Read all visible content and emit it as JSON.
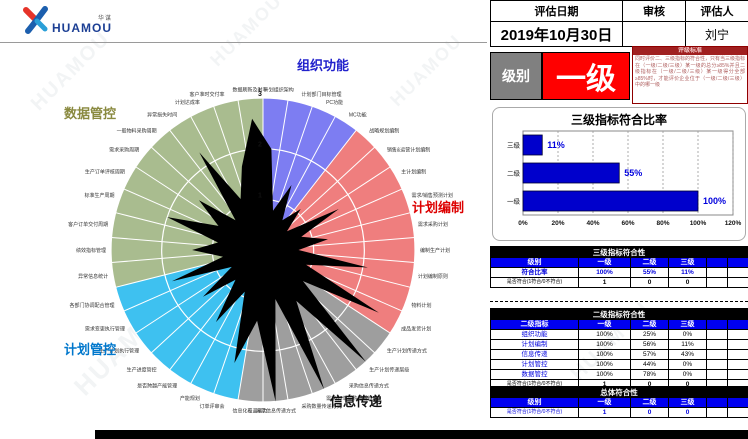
{
  "logo": {
    "brand": "HUAMOU",
    "brand_cn": "华谋"
  },
  "watermark": {
    "text": "HUAMOU"
  },
  "eval_header": {
    "date_label": "评估日期",
    "review_label": "审核",
    "assessor_label": "评估人",
    "date_value": "2019年10月30日",
    "review_value": "",
    "assessor_value": "刘宁"
  },
  "level": {
    "label": "级别",
    "value": "一级"
  },
  "standards": {
    "title": "评级标准",
    "body": "同时评价二、三级指标的符合性，只有当三级指标在（一级/二级/三级）某一级的总分≥85%并且二级指标在（一级/二级/三级）某一级得分全部≥85%时，才能评价企业位于（一级/二级/三级）中的哪一级"
  },
  "chart_data": [
    {
      "type": "radar",
      "rmax": 3,
      "rings": [
        1,
        2,
        3
      ],
      "categories": [
        {
          "name": "组织功能",
          "color": "#7d7df2",
          "title_color": "#2222cc",
          "title_xy": [
            297,
            26
          ],
          "items": [
            {
              "label": "1. 计划组织架构",
              "value": 2.0
            },
            {
              "label": "计划部门目标管理",
              "value": 0.8
            },
            {
              "label": "PC功能",
              "value": 1.4
            },
            {
              "label": "MC功能",
              "value": 0.7
            }
          ]
        },
        {
          "name": "计划编制",
          "color": "#ef7e7e",
          "title_color": "#dd0000",
          "title_xy": [
            412,
            168
          ],
          "items": [
            {
              "label": "战略规划编制",
              "value": 1.1
            },
            {
              "label": "销售&运营计划编制",
              "value": 0.6
            },
            {
              "label": "主计划编制",
              "value": 1.7
            },
            {
              "label": "需求/销售预测计划",
              "value": 0.8
            },
            {
              "label": "需求采购计划",
              "value": 1.3
            },
            {
              "label": "编制生产计划",
              "value": 0.7
            },
            {
              "label": "计划编制原则",
              "value": 2.1
            },
            {
              "label": "物料计划",
              "value": 0.9
            },
            {
              "label": "成品发货计划",
              "value": 2.6
            }
          ]
        },
        {
          "name": "信息传递",
          "color": "#9e9e9e",
          "title_color": "#111111",
          "title_xy": [
            330,
            362
          ],
          "items": [
            {
              "label": "生产计划传递方式",
              "value": 1.0
            },
            {
              "label": "生产计划传递层级",
              "value": 3.0
            },
            {
              "label": "采购信息传递方式",
              "value": 1.2
            },
            {
              "label": "需求/订单采购周期管理",
              "value": 3.0
            },
            {
              "label": "采购数量传递方式",
              "value": 1.0
            },
            {
              "label": "异常信息传递方式",
              "value": 3.0
            },
            {
              "label": "信息化覆盖能力",
              "value": 1.4
            }
          ]
        },
        {
          "name": "计划管控",
          "color": "#3ec1f0",
          "title_color": "#0077cc",
          "title_xy": [
            64,
            310
          ],
          "items": [
            {
              "label": "订单评审会",
              "value": 2.3
            },
            {
              "label": "产能规划",
              "value": 0.9
            },
            {
              "label": "是否跨越产能管理",
              "value": 1.7
            },
            {
              "label": "生产进度管控",
              "value": 0.8
            },
            {
              "label": "生产计划执行管理",
              "value": 1.5
            },
            {
              "label": "需求变更执行管理",
              "value": 0.7
            },
            {
              "label": "各部门协调配合管理",
              "value": 1.9
            }
          ]
        },
        {
          "name": "数据管控",
          "color": "#a9bc8f",
          "title_color": "#8a8a40",
          "title_xy": [
            64,
            74
          ],
          "items": [
            {
              "label": "异常信息统计",
              "value": 0.8
            },
            {
              "label": "绩效指标管理",
              "value": 1.4
            },
            {
              "label": "客户订单交付周期",
              "value": 0.9
            },
            {
              "label": "标准生产周期",
              "value": 2.0
            },
            {
              "label": "生产订单评核周期",
              "value": 1.0
            },
            {
              "label": "需求采购周期",
              "value": 1.6
            },
            {
              "label": "一般物料采购周期",
              "value": 0.8
            },
            {
              "label": "异常损失时间",
              "value": 2.3
            },
            {
              "label": "计划达成率",
              "value": 1.1
            },
            {
              "label": "客户准时交付率",
              "value": 1.7
            },
            {
              "label": "数据刷新及时率",
              "value": 2.6
            }
          ]
        }
      ]
    },
    {
      "type": "bar",
      "title": "三级指标符合比率",
      "categories": [
        "三级",
        "二级",
        "一级"
      ],
      "values": [
        11,
        55,
        100
      ],
      "value_labels": [
        "11%",
        "55%",
        "100%"
      ],
      "xlim": [
        0,
        120
      ],
      "xticks": [
        "0%",
        "20%",
        "40%",
        "60%",
        "80%",
        "100%",
        "120%"
      ],
      "bar_color": "#0000cc",
      "grid": "dashed-vertical",
      "legend": "none"
    }
  ],
  "tables": {
    "level3": {
      "title": "三级指标符合性",
      "header": [
        "级别",
        "一级",
        "二级",
        "三级",
        "",
        ""
      ],
      "rows": [
        {
          "label": "符合比率",
          "cls": "r-blue",
          "values": [
            "100%",
            "55%",
            "11%",
            "",
            ""
          ]
        },
        {
          "label": "是否符合(1符合/0不符合)",
          "cls": "r-comp",
          "values": [
            "1",
            "0",
            "0",
            "",
            ""
          ]
        }
      ]
    },
    "level2": {
      "title": "二级指标符合性",
      "header": [
        "二级指标",
        "一级",
        "二级",
        "三级",
        "",
        ""
      ],
      "rows": [
        {
          "label": "组织功能",
          "cls": "r-cat",
          "values": [
            "100%",
            "25%",
            "0%",
            "",
            ""
          ]
        },
        {
          "label": "计划编制",
          "cls": "r-cat",
          "values": [
            "100%",
            "56%",
            "11%",
            "",
            ""
          ]
        },
        {
          "label": "信息传递",
          "cls": "r-cat",
          "values": [
            "100%",
            "57%",
            "43%",
            "",
            ""
          ]
        },
        {
          "label": "计划管控",
          "cls": "r-cat",
          "values": [
            "100%",
            "44%",
            "0%",
            "",
            ""
          ]
        },
        {
          "label": "数据管控",
          "cls": "r-cat",
          "values": [
            "100%",
            "78%",
            "0%",
            "",
            ""
          ]
        },
        {
          "label": "是否符合(1符合/0不符合)",
          "cls": "r-comp",
          "values": [
            "1",
            "0",
            "0",
            "",
            ""
          ]
        }
      ]
    },
    "overall": {
      "title": "总体符合性",
      "header": [
        "级别",
        "一级",
        "二级",
        "三级",
        "",
        ""
      ],
      "rows": [
        {
          "label": "是否符合(1符合/0不符合)",
          "cls": "r-overall",
          "values": [
            "1",
            "0",
            "0",
            "",
            ""
          ]
        }
      ]
    }
  }
}
